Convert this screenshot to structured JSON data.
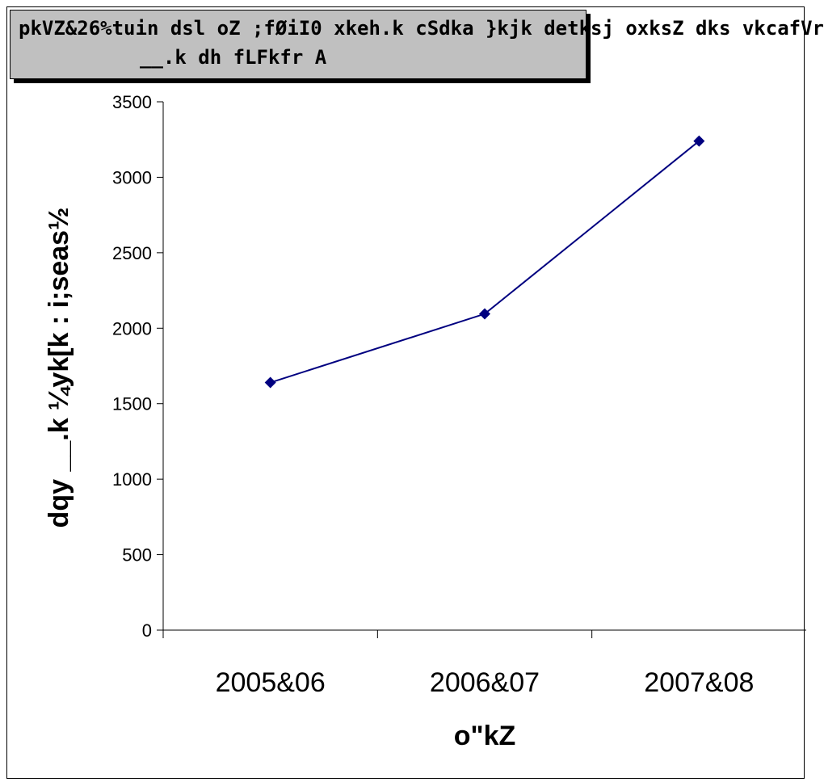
{
  "chart_data": {
    "type": "line",
    "title_lines": [
      "pkVZ&26%tuin dsl oZ ;fØiI0 xkeh.k cSdka }kjk detksj oxksZ dks vkcafVr",
      "__.k dh fLFkfr A"
    ],
    "xlabel": "o\"kZ",
    "ylabel": "dqy __.k ¼yk[k : i;seas½",
    "categories": [
      "2005&06",
      "2006&07",
      "2007&08"
    ],
    "series": [
      {
        "values": [
          1640,
          2095,
          3240
        ]
      }
    ],
    "ylim": [
      0,
      3500
    ],
    "yticks": [
      0,
      500,
      1000,
      1500,
      2000,
      2500,
      3000,
      3500
    ],
    "line_color": "#000080",
    "marker": "diamond",
    "grid": false,
    "legend": "none"
  }
}
